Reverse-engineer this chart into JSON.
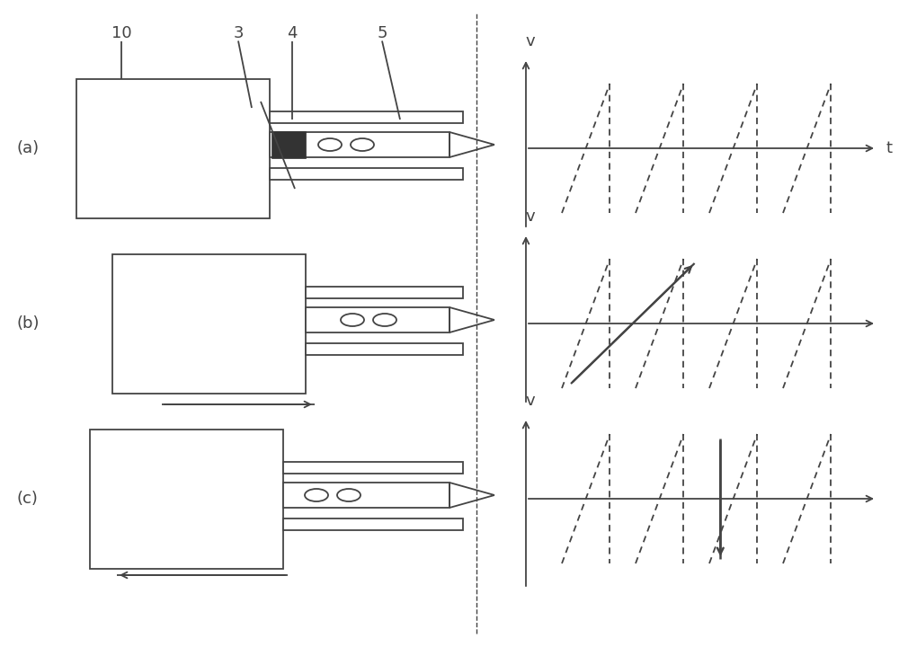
{
  "background_color": "#ffffff",
  "line_color": "#444444",
  "fig_width": 10.0,
  "fig_height": 7.2,
  "labels": {
    "a": "(a)",
    "b": "(b)",
    "c": "(c)",
    "num10": "10",
    "num3": "3",
    "num4": "4",
    "num5": "5",
    "v": "v",
    "t": "t"
  }
}
